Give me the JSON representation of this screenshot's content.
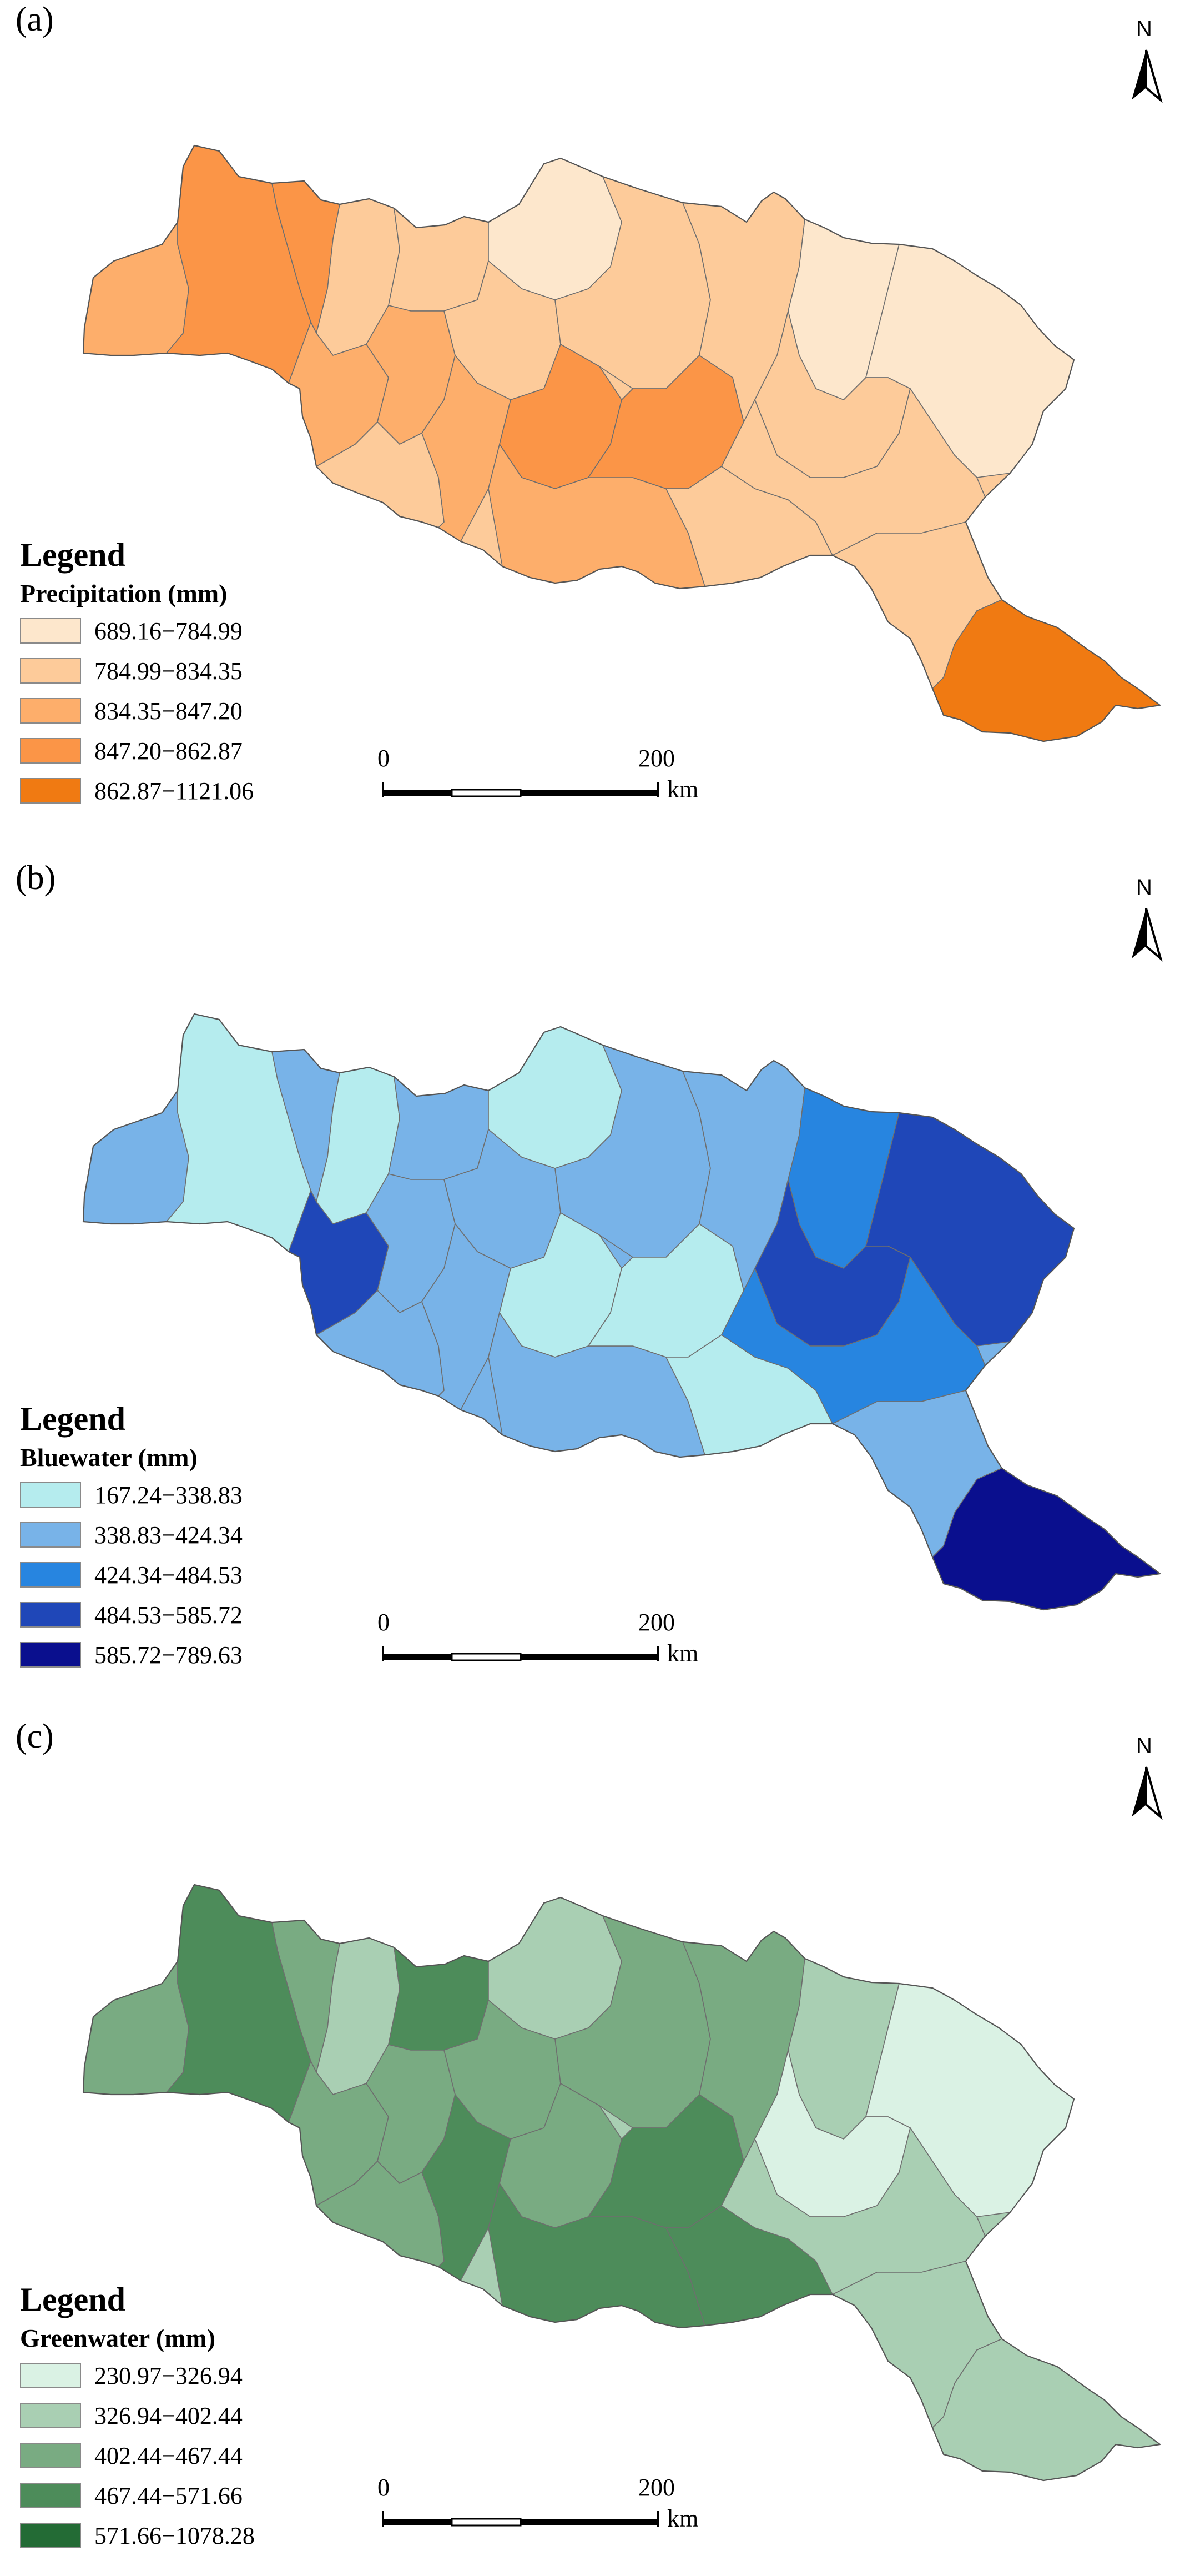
{
  "figure": {
    "north_label": "N",
    "scale": {
      "start": "0",
      "end": "200",
      "unit": "km"
    },
    "legend_title": "Legend"
  },
  "panels": [
    {
      "label": "(a)",
      "variable": "Precipitation (mm)",
      "classes": [
        {
          "range": "689.16−784.99",
          "color": "#fde7cc"
        },
        {
          "range": "784.99−834.35",
          "color": "#fdcb9a"
        },
        {
          "range": "834.35−847.20",
          "color": "#fdae6b"
        },
        {
          "range": "847.20−862.87",
          "color": "#fb9547"
        },
        {
          "range": "862.87−1121.06",
          "color": "#f07a12"
        }
      ]
    },
    {
      "label": "(b)",
      "variable": "Bluewater (mm)",
      "classes": [
        {
          "range": "167.24−338.83",
          "color": "#b5ecee"
        },
        {
          "range": "338.83−424.34",
          "color": "#78b3e8"
        },
        {
          "range": "424.34−484.53",
          "color": "#2785e0"
        },
        {
          "range": "484.53−585.72",
          "color": "#1f47b8"
        },
        {
          "range": "585.72−789.63",
          "color": "#0a0f8e"
        }
      ]
    },
    {
      "label": "(c)",
      "variable": "Greenwater (mm)",
      "classes": [
        {
          "range": "230.97−326.94",
          "color": "#daf2e4"
        },
        {
          "range": "326.94−402.44",
          "color": "#a9cfb3"
        },
        {
          "range": "402.44−467.44",
          "color": "#79ab82"
        },
        {
          "range": "467.44−571.66",
          "color": "#4d8c5a"
        },
        {
          "range": "571.66−1078.28",
          "color": "#236b35"
        }
      ]
    }
  ]
}
